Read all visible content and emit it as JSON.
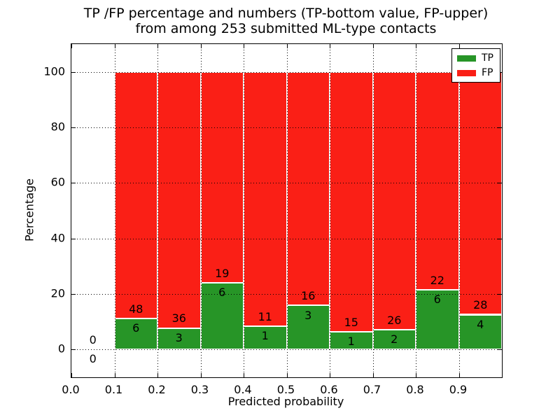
{
  "figure": {
    "title_line1": "TP /FP percentage and numbers (TP-bottom value, FP-upper)",
    "title_line2": "from among 253 submitted ML-type contacts",
    "xlabel": "Predicted probability",
    "ylabel": "Percentage"
  },
  "legend": {
    "position": "upper right",
    "items": [
      {
        "label": "TP",
        "color": "#279527"
      },
      {
        "label": "FP",
        "color": "#fa1f16"
      }
    ]
  },
  "chart_data": {
    "type": "bar",
    "stacked": true,
    "title": "TP /FP percentage and numbers (TP-bottom value, FP-upper) from among 253 submitted ML-type contacts",
    "xlabel": "Predicted probability",
    "ylabel": "Percentage",
    "total_submitted_contacts": 253,
    "bin_width": 0.1,
    "bin_starts": [
      0.0,
      0.1,
      0.2,
      0.3,
      0.4,
      0.5,
      0.6,
      0.7,
      0.8,
      0.9
    ],
    "series": [
      {
        "name": "TP",
        "color": "#279527",
        "counts": [
          0,
          6,
          3,
          6,
          1,
          3,
          1,
          2,
          6,
          4
        ]
      },
      {
        "name": "FP",
        "color": "#fa1f16",
        "counts": [
          0,
          48,
          36,
          19,
          11,
          16,
          15,
          26,
          22,
          28
        ]
      }
    ],
    "tp_percent_heights": [
      0,
      11.1,
      7.7,
      24.0,
      8.3,
      15.8,
      6.3,
      7.1,
      21.4,
      12.5
    ],
    "bars_stack_to_percent": 100,
    "xlim": [
      0,
      1.0
    ],
    "ylim": [
      -10.1,
      110.1
    ],
    "xticks": [
      0.0,
      0.1,
      0.2,
      0.3,
      0.4,
      0.5,
      0.6,
      0.7,
      0.8,
      0.9
    ],
    "xtick_labels": [
      "0.0",
      "0.1",
      "0.2",
      "0.3",
      "0.4",
      "0.5",
      "0.6",
      "0.7",
      "0.8",
      "0.9"
    ],
    "yticks": [
      0,
      20,
      40,
      60,
      80,
      100
    ],
    "ytick_labels": [
      "0",
      "20",
      "40",
      "60",
      "80",
      "100"
    ],
    "grid": true,
    "grid_style": "dotted",
    "grid_over_bars": true,
    "legend_position": "upper right"
  }
}
